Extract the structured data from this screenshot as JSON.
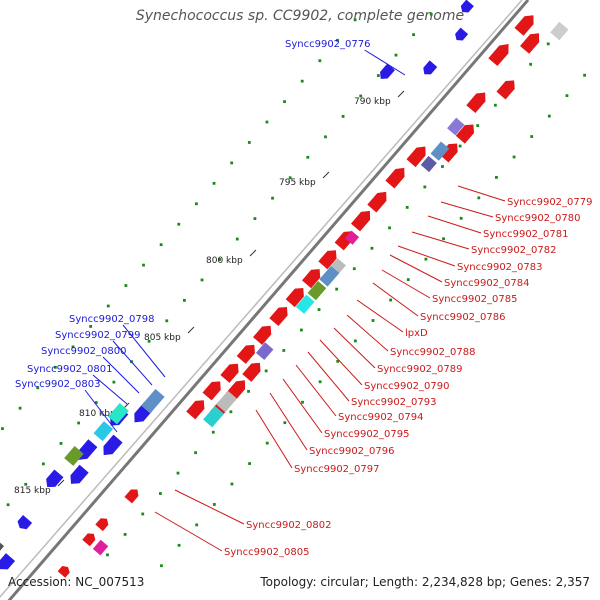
{
  "title": "Synechococcus sp. CC9902, complete genome",
  "footer": {
    "accession": "Accession: NC_007513",
    "topology": "Topology: circular; Length: 2,234,828 bp; Genes: 2,357"
  },
  "ticks": [
    "790 kbp",
    "795 kbp",
    "800 kbp",
    "805 kbp",
    "810 kbp",
    "815 kbp"
  ],
  "colors": {
    "plus_strand": "#2a1ae6",
    "minus_strand": "#e21616",
    "backbone": "#8a8a8a",
    "gc_dots": "#1a8a1a",
    "rna": "#e0209a",
    "label_blue": "#1b1bd8",
    "label_red": "#cc1a1a"
  },
  "left_labels": [
    "Syncc9902_0776",
    "Syncc9902_0798",
    "Syncc9902_0799",
    "Syncc9902_0800",
    "Syncc9902_0801",
    "Syncc9902_0803"
  ],
  "right_labels": [
    "Syncc9902_0779",
    "Syncc9902_0780",
    "Syncc9902_0781",
    "Syncc9902_0782",
    "Syncc9902_0783",
    "Syncc9902_0784",
    "Syncc9902_0785",
    "Syncc9902_0786",
    "lpxD",
    "Syncc9902_0788",
    "Syncc9902_0789",
    "Syncc9902_0790",
    "Syncc9902_0793",
    "Syncc9902_0794",
    "Syncc9902_0795",
    "Syncc9902_0796",
    "Syncc9902_0797",
    "Syncc9902_0802",
    "Syncc9902_0805"
  ]
}
